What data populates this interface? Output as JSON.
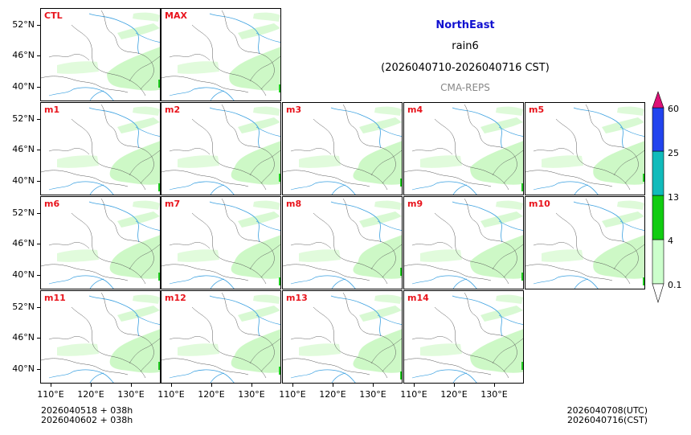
{
  "title": {
    "region": "NorthEast",
    "variable": "rain6",
    "period": "(2026040710-2026040716 CST)",
    "model": "CMA-REPS"
  },
  "panels": [
    "CTL",
    "MAX",
    "m1",
    "m2",
    "m3",
    "m4",
    "m5",
    "m6",
    "m7",
    "m8",
    "m9",
    "m10",
    "m11",
    "m12",
    "m13",
    "m14"
  ],
  "axes": {
    "lat_ticks": [
      "52°N",
      "46°N",
      "40°N"
    ],
    "lon_ticks": [
      "110°E",
      "120°E",
      "130°E"
    ]
  },
  "colorbar": {
    "levels": [
      "0.1",
      "4",
      "13",
      "25",
      "60"
    ],
    "colors": [
      "#ccffcc",
      "#11cc11",
      "#11bbbb",
      "#2244ee",
      "#dd1177"
    ]
  },
  "footer": {
    "init_line1": "2026040518  +  038h",
    "init_line2": "2026040602  +  038h",
    "valid_utc": "2026040708(UTC)",
    "valid_cst": "2026040716(CST)"
  },
  "colors": {
    "label_red": "#e8141c",
    "rain_light": "#c8f7c0",
    "rain_mid": "#22cc22",
    "river": "#3aa0e0",
    "border": "#555555"
  }
}
